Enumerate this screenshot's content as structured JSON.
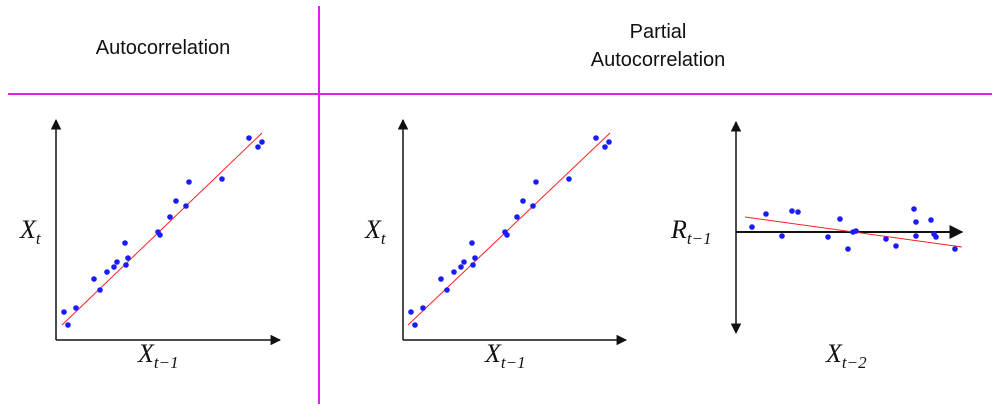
{
  "headers": {
    "autocorrelation": "Autocorrelation",
    "partial_line1": "Partial",
    "partial_line2": "Autocorrelation"
  },
  "colors": {
    "divider": "#e020e0",
    "point": "#1a1aff",
    "fit_line": "#ff2020",
    "axis": "#111111"
  },
  "panels": [
    {
      "id": "acf",
      "y_label": {
        "main": "X",
        "sub": "t"
      },
      "x_label": {
        "main": "X",
        "sub": "t−1"
      }
    },
    {
      "id": "pacf-scatter",
      "y_label": {
        "main": "X",
        "sub": "t"
      },
      "x_label": {
        "main": "X",
        "sub": "t−1"
      }
    },
    {
      "id": "pacf-residual",
      "y_label": {
        "main": "R",
        "sub": "t−1"
      },
      "x_label": {
        "main": "X",
        "sub": "t−2"
      }
    }
  ]
}
